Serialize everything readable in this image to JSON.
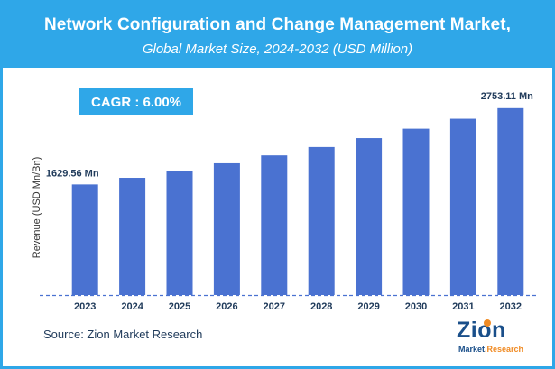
{
  "header": {
    "title": "Network Configuration and Change Management Market,",
    "subtitle": "Global Market Size, 2024-2032 (USD Million)"
  },
  "cagr_label": "CAGR : 6.00%",
  "source": "Source: Zion Market Research",
  "logo": {
    "main": "Zion",
    "sub_left": "Market",
    "sub_right": ".Research"
  },
  "colors": {
    "accent": "#2fa7e8",
    "bar": "#4a72d1",
    "axis": "#4a72d1"
  },
  "chart_data": {
    "type": "bar",
    "title": "Network Configuration and Change Management Market, Global Market Size, 2024-2032 (USD Million)",
    "xlabel": "",
    "ylabel": "Revenue (USD Mn/Bn)",
    "categories": [
      "2023",
      "2024",
      "2025",
      "2026",
      "2027",
      "2028",
      "2029",
      "2030",
      "2031",
      "2032"
    ],
    "values": [
      1629.56,
      1727.3,
      1830.9,
      1940.8,
      2057.3,
      2180.7,
      2311.5,
      2450.2,
      2597.2,
      2753.11
    ],
    "data_labels": {
      "first": "1629.56 Mn",
      "last": "2753.11 Mn"
    },
    "ylim": [
      0,
      2950
    ],
    "grid": false
  }
}
